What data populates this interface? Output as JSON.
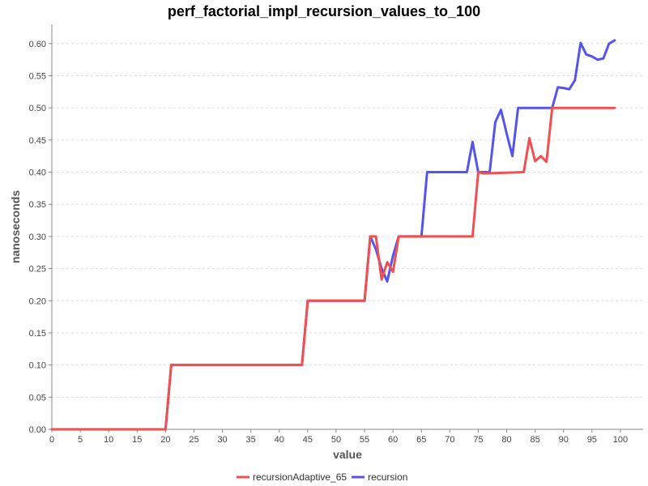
{
  "chart_data": {
    "type": "line",
    "title": "perf_factorial_impl_recursion_values_to_100",
    "xlabel": "value",
    "ylabel": "nanoseconds",
    "xlim": [
      0,
      104
    ],
    "ylim": [
      0,
      0.63
    ],
    "x_ticks": [
      "0",
      "5",
      "10",
      "15",
      "20",
      "25",
      "30",
      "35",
      "40",
      "45",
      "50",
      "55",
      "60",
      "65",
      "70",
      "75",
      "80",
      "85",
      "90",
      "95",
      "100"
    ],
    "y_ticks": [
      "0.00",
      "0.05",
      "0.10",
      "0.15",
      "0.20",
      "0.25",
      "0.30",
      "0.35",
      "0.40",
      "0.45",
      "0.50",
      "0.55",
      "0.60"
    ],
    "grid": true,
    "legend_position": "bottom",
    "series": [
      {
        "name": "recursion",
        "color": "#5555ee",
        "points": [
          [
            0,
            0
          ],
          [
            20,
            0
          ],
          [
            21,
            0.1
          ],
          [
            44,
            0.1
          ],
          [
            45,
            0.2
          ],
          [
            55,
            0.2
          ],
          [
            56,
            0.3
          ],
          [
            57,
            0.28
          ],
          [
            58,
            0.25
          ],
          [
            59,
            0.23
          ],
          [
            60,
            0.27
          ],
          [
            61,
            0.3
          ],
          [
            65,
            0.3
          ],
          [
            66,
            0.4
          ],
          [
            73,
            0.4
          ],
          [
            74,
            0.447
          ],
          [
            75,
            0.4
          ],
          [
            77,
            0.4
          ],
          [
            78,
            0.478
          ],
          [
            79,
            0.497
          ],
          [
            80,
            0.46
          ],
          [
            81,
            0.425
          ],
          [
            82,
            0.5
          ],
          [
            88,
            0.5
          ],
          [
            89,
            0.532
          ],
          [
            90,
            0.531
          ],
          [
            91,
            0.529
          ],
          [
            92,
            0.543
          ],
          [
            93,
            0.601
          ],
          [
            94,
            0.583
          ],
          [
            95,
            0.58
          ],
          [
            96,
            0.575
          ],
          [
            97,
            0.577
          ],
          [
            98,
            0.6
          ],
          [
            99,
            0.605
          ]
        ]
      },
      {
        "name": "recursionAdaptive_65",
        "color": "#f05050",
        "points": [
          [
            0,
            0
          ],
          [
            20,
            0
          ],
          [
            21,
            0.1
          ],
          [
            44,
            0.1
          ],
          [
            45,
            0.2
          ],
          [
            55,
            0.2
          ],
          [
            56,
            0.3
          ],
          [
            57,
            0.3
          ],
          [
            58,
            0.233
          ],
          [
            59,
            0.26
          ],
          [
            60,
            0.245
          ],
          [
            61,
            0.3
          ],
          [
            74,
            0.3
          ],
          [
            75,
            0.4
          ],
          [
            76,
            0.398
          ],
          [
            83,
            0.4
          ],
          [
            84,
            0.453
          ],
          [
            85,
            0.417
          ],
          [
            86,
            0.425
          ],
          [
            87,
            0.416
          ],
          [
            88,
            0.5
          ],
          [
            99,
            0.5
          ]
        ]
      }
    ],
    "legend": [
      {
        "name": "recursionAdaptive_65",
        "color": "#f05050"
      },
      {
        "name": "recursion",
        "color": "#5555ee"
      }
    ]
  }
}
